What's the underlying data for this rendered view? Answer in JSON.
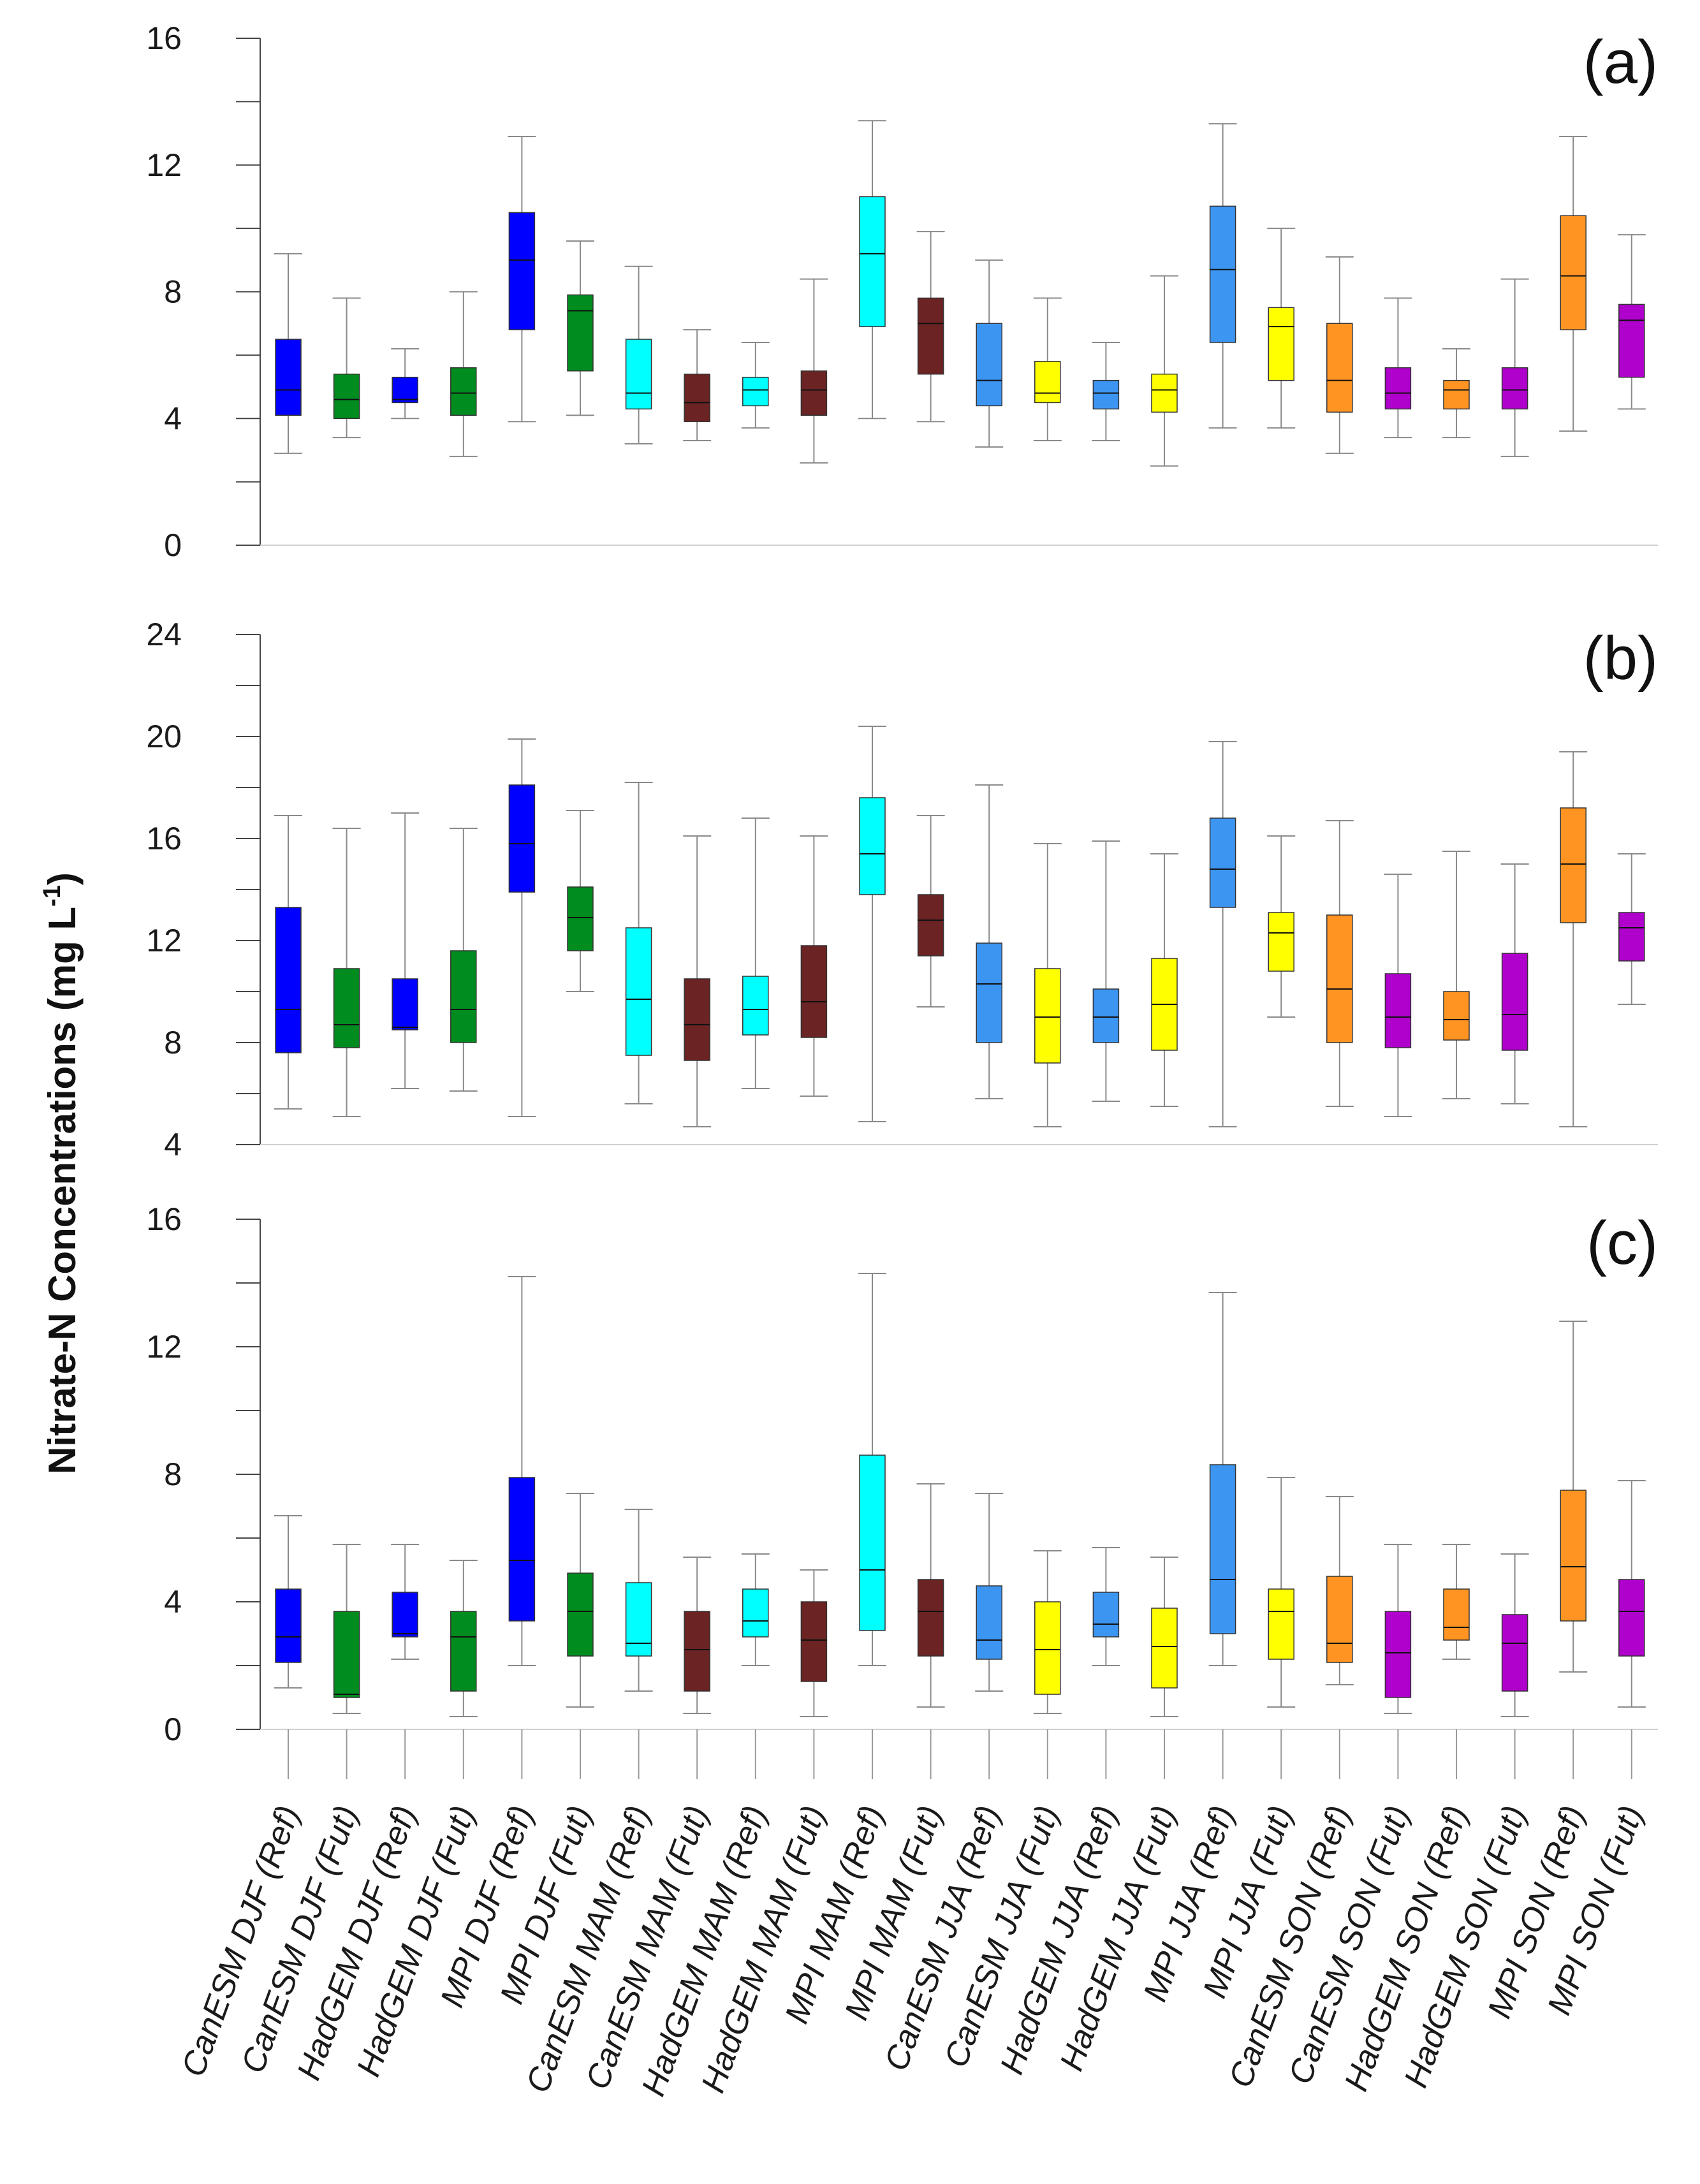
{
  "chart_data": {
    "type": "boxplot",
    "ylabel": "Nitrate-N Concentrations (mg L",
    "ylabel_unit_superscript": "-1",
    "ylabel_close": ")",
    "categories": [
      "CanESM DJF (Ref)",
      "CanESM DJF (Fut)",
      "HadGEM DJF (Ref)",
      "HadGEM DJF (Fut)",
      "MPI DJF (Ref)",
      "MPI DJF (Fut)",
      "CanESM MAM (Ref)",
      "CanESM MAM (Fut)",
      "HadGEM MAM (Ref)",
      "HadGEM MAM (Fut)",
      "MPI MAM (Ref)",
      "MPI MAM (Fut)",
      "CanESM JJA (Ref)",
      "CanESM JJA (Fut)",
      "HadGEM JJA (Ref)",
      "HadGEM JJA (Fut)",
      "MPI JJA (Ref)",
      "MPI JJA (Fut)",
      "CanESM SON (Ref)",
      "CanESM SON (Fut)",
      "HadGEM SON (Ref)",
      "HadGEM SON (Fut)",
      "MPI SON (Ref)",
      "MPI SON (Fut)"
    ],
    "colors": [
      "#0000ff",
      "#008c1e",
      "#0000ff",
      "#008c1e",
      "#0000ff",
      "#008c1e",
      "#00ffff",
      "#6b2323",
      "#00ffff",
      "#6b2323",
      "#00ffff",
      "#6b2323",
      "#3d95f2",
      "#ffff00",
      "#3d95f2",
      "#ffff00",
      "#3d95f2",
      "#ffff00",
      "#ff9422",
      "#b000cc",
      "#ff9422",
      "#b000cc",
      "#ff9422",
      "#b000cc"
    ],
    "panels": [
      {
        "label": "(a)",
        "ylim": [
          0,
          16
        ],
        "yticks": [
          0,
          4,
          8,
          12,
          16
        ],
        "boxes": [
          {
            "min": 2.9,
            "q1": 4.1,
            "median": 4.9,
            "q3": 6.5,
            "max": 9.2
          },
          {
            "min": 3.4,
            "q1": 4.0,
            "median": 4.6,
            "q3": 5.4,
            "max": 7.8
          },
          {
            "min": 4.0,
            "q1": 4.5,
            "median": 4.6,
            "q3": 5.3,
            "max": 6.2
          },
          {
            "min": 2.8,
            "q1": 4.1,
            "median": 4.8,
            "q3": 5.6,
            "max": 8.0
          },
          {
            "min": 3.9,
            "q1": 6.8,
            "median": 9.0,
            "q3": 10.5,
            "max": 12.9
          },
          {
            "min": 4.1,
            "q1": 5.5,
            "median": 7.4,
            "q3": 7.9,
            "max": 9.6
          },
          {
            "min": 3.2,
            "q1": 4.3,
            "median": 4.8,
            "q3": 6.5,
            "max": 8.8
          },
          {
            "min": 3.3,
            "q1": 3.9,
            "median": 4.5,
            "q3": 5.4,
            "max": 6.8
          },
          {
            "min": 3.7,
            "q1": 4.4,
            "median": 4.9,
            "q3": 5.3,
            "max": 6.4
          },
          {
            "min": 2.6,
            "q1": 4.1,
            "median": 4.9,
            "q3": 5.5,
            "max": 8.4
          },
          {
            "min": 4.0,
            "q1": 6.9,
            "median": 9.2,
            "q3": 11.0,
            "max": 13.4
          },
          {
            "min": 3.9,
            "q1": 5.4,
            "median": 7.0,
            "q3": 7.8,
            "max": 9.9
          },
          {
            "min": 3.1,
            "q1": 4.4,
            "median": 5.2,
            "q3": 7.0,
            "max": 9.0
          },
          {
            "min": 3.3,
            "q1": 4.5,
            "median": 4.8,
            "q3": 5.8,
            "max": 7.8
          },
          {
            "min": 3.3,
            "q1": 4.3,
            "median": 4.8,
            "q3": 5.2,
            "max": 6.4
          },
          {
            "min": 2.5,
            "q1": 4.2,
            "median": 4.9,
            "q3": 5.4,
            "max": 8.5
          },
          {
            "min": 3.7,
            "q1": 6.4,
            "median": 8.7,
            "q3": 10.7,
            "max": 13.3
          },
          {
            "min": 3.7,
            "q1": 5.2,
            "median": 6.9,
            "q3": 7.5,
            "max": 10.0
          },
          {
            "min": 2.9,
            "q1": 4.2,
            "median": 5.2,
            "q3": 7.0,
            "max": 9.1
          },
          {
            "min": 3.4,
            "q1": 4.3,
            "median": 4.8,
            "q3": 5.6,
            "max": 7.8
          },
          {
            "min": 3.4,
            "q1": 4.3,
            "median": 4.9,
            "q3": 5.2,
            "max": 6.2
          },
          {
            "min": 2.8,
            "q1": 4.3,
            "median": 4.9,
            "q3": 5.6,
            "max": 8.4
          },
          {
            "min": 3.6,
            "q1": 6.8,
            "median": 8.5,
            "q3": 10.4,
            "max": 12.9
          },
          {
            "min": 4.3,
            "q1": 5.3,
            "median": 7.1,
            "q3": 7.6,
            "max": 9.8
          }
        ]
      },
      {
        "label": "(b)",
        "ylim": [
          4,
          24
        ],
        "yticks": [
          4,
          8,
          12,
          16,
          20,
          24
        ],
        "boxes": [
          {
            "min": 5.4,
            "q1": 7.6,
            "median": 9.3,
            "q3": 13.3,
            "max": 16.9
          },
          {
            "min": 5.1,
            "q1": 7.8,
            "median": 8.7,
            "q3": 10.9,
            "max": 16.4
          },
          {
            "min": 6.2,
            "q1": 8.5,
            "median": 8.6,
            "q3": 10.5,
            "max": 17.0
          },
          {
            "min": 6.1,
            "q1": 8.0,
            "median": 9.3,
            "q3": 11.6,
            "max": 16.4
          },
          {
            "min": 5.1,
            "q1": 13.9,
            "median": 15.8,
            "q3": 18.1,
            "max": 19.9
          },
          {
            "min": 10.0,
            "q1": 11.6,
            "median": 12.9,
            "q3": 14.1,
            "max": 17.1
          },
          {
            "min": 5.6,
            "q1": 7.5,
            "median": 9.7,
            "q3": 12.5,
            "max": 18.2
          },
          {
            "min": 4.7,
            "q1": 7.3,
            "median": 8.7,
            "q3": 10.5,
            "max": 16.1
          },
          {
            "min": 6.2,
            "q1": 8.3,
            "median": 9.3,
            "q3": 10.6,
            "max": 16.8
          },
          {
            "min": 5.9,
            "q1": 8.2,
            "median": 9.6,
            "q3": 11.8,
            "max": 16.1
          },
          {
            "min": 4.9,
            "q1": 13.8,
            "median": 15.4,
            "q3": 17.6,
            "max": 20.4
          },
          {
            "min": 9.4,
            "q1": 11.4,
            "median": 12.8,
            "q3": 13.8,
            "max": 16.9
          },
          {
            "min": 5.8,
            "q1": 8.0,
            "median": 10.3,
            "q3": 11.9,
            "max": 18.1
          },
          {
            "min": 4.7,
            "q1": 7.2,
            "median": 9.0,
            "q3": 10.9,
            "max": 15.8
          },
          {
            "min": 5.7,
            "q1": 8.0,
            "median": 9.0,
            "q3": 10.1,
            "max": 15.9
          },
          {
            "min": 5.5,
            "q1": 7.7,
            "median": 9.5,
            "q3": 11.3,
            "max": 15.4
          },
          {
            "min": 4.7,
            "q1": 13.3,
            "median": 14.8,
            "q3": 16.8,
            "max": 19.8
          },
          {
            "min": 9.0,
            "q1": 10.8,
            "median": 12.3,
            "q3": 13.1,
            "max": 16.1
          },
          {
            "min": 5.5,
            "q1": 8.0,
            "median": 10.1,
            "q3": 13.0,
            "max": 16.7
          },
          {
            "min": 5.1,
            "q1": 7.8,
            "median": 9.0,
            "q3": 10.7,
            "max": 14.6
          },
          {
            "min": 5.8,
            "q1": 8.1,
            "median": 8.9,
            "q3": 10.0,
            "max": 15.5
          },
          {
            "min": 5.6,
            "q1": 7.7,
            "median": 9.1,
            "q3": 11.5,
            "max": 15.0
          },
          {
            "min": 4.7,
            "q1": 12.7,
            "median": 15.0,
            "q3": 17.2,
            "max": 19.4
          },
          {
            "min": 9.5,
            "q1": 11.2,
            "median": 12.5,
            "q3": 13.1,
            "max": 15.4
          }
        ]
      },
      {
        "label": "(c)",
        "ylim": [
          0,
          16
        ],
        "yticks": [
          0,
          4,
          8,
          12,
          16
        ],
        "boxes": [
          {
            "min": 1.3,
            "q1": 2.1,
            "median": 2.9,
            "q3": 4.4,
            "max": 6.7
          },
          {
            "min": 0.5,
            "q1": 1.0,
            "median": 1.1,
            "q3": 3.7,
            "max": 5.8
          },
          {
            "min": 2.2,
            "q1": 2.9,
            "median": 3.0,
            "q3": 4.3,
            "max": 5.8
          },
          {
            "min": 0.4,
            "q1": 1.2,
            "median": 2.9,
            "q3": 3.7,
            "max": 5.3
          },
          {
            "min": 2.0,
            "q1": 3.4,
            "median": 5.3,
            "q3": 7.9,
            "max": 14.2
          },
          {
            "min": 0.7,
            "q1": 2.3,
            "median": 3.7,
            "q3": 4.9,
            "max": 7.4
          },
          {
            "min": 1.2,
            "q1": 2.3,
            "median": 2.7,
            "q3": 4.6,
            "max": 6.9
          },
          {
            "min": 0.5,
            "q1": 1.2,
            "median": 2.5,
            "q3": 3.7,
            "max": 5.4
          },
          {
            "min": 2.0,
            "q1": 2.9,
            "median": 3.4,
            "q3": 4.4,
            "max": 5.5
          },
          {
            "min": 0.4,
            "q1": 1.5,
            "median": 2.8,
            "q3": 4.0,
            "max": 5.0
          },
          {
            "min": 2.0,
            "q1": 3.1,
            "median": 5.0,
            "q3": 8.6,
            "max": 14.3
          },
          {
            "min": 0.7,
            "q1": 2.3,
            "median": 3.7,
            "q3": 4.7,
            "max": 7.7
          },
          {
            "min": 1.2,
            "q1": 2.2,
            "median": 2.8,
            "q3": 4.5,
            "max": 7.4
          },
          {
            "min": 0.5,
            "q1": 1.1,
            "median": 2.5,
            "q3": 4.0,
            "max": 5.6
          },
          {
            "min": 2.0,
            "q1": 2.9,
            "median": 3.3,
            "q3": 4.3,
            "max": 5.7
          },
          {
            "min": 0.4,
            "q1": 1.3,
            "median": 2.6,
            "q3": 3.8,
            "max": 5.4
          },
          {
            "min": 2.0,
            "q1": 3.0,
            "median": 4.7,
            "q3": 8.3,
            "max": 13.7
          },
          {
            "min": 0.7,
            "q1": 2.2,
            "median": 3.7,
            "q3": 4.4,
            "max": 7.9
          },
          {
            "min": 1.4,
            "q1": 2.1,
            "median": 2.7,
            "q3": 4.8,
            "max": 7.3
          },
          {
            "min": 0.5,
            "q1": 1.0,
            "median": 2.4,
            "q3": 3.7,
            "max": 5.8
          },
          {
            "min": 2.2,
            "q1": 2.8,
            "median": 3.2,
            "q3": 4.4,
            "max": 5.8
          },
          {
            "min": 0.4,
            "q1": 1.2,
            "median": 2.7,
            "q3": 3.6,
            "max": 5.5
          },
          {
            "min": 1.8,
            "q1": 3.4,
            "median": 5.1,
            "q3": 7.5,
            "max": 12.8
          },
          {
            "min": 0.7,
            "q1": 2.3,
            "median": 3.7,
            "q3": 4.7,
            "max": 7.8
          }
        ]
      }
    ]
  }
}
